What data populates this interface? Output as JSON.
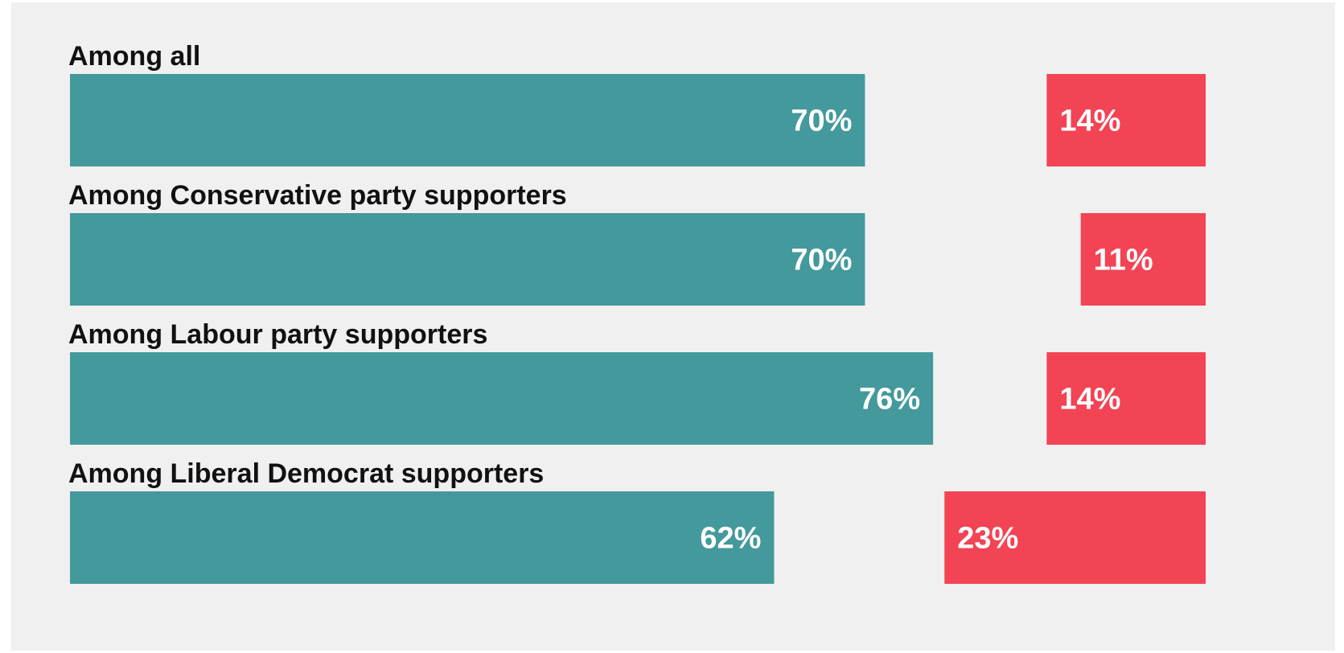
{
  "colors": {
    "background": "#f0f0f0",
    "positive": "#43999b",
    "negative": "#f24454",
    "label_text": "#111111",
    "value_text": "#ffffff"
  },
  "chart_data": {
    "type": "bar",
    "orientation": "horizontal",
    "categories": [
      "Among all",
      "Among Conservative party supporters",
      "Among Labour party supporters",
      "Among Liberal Democrat supporters"
    ],
    "series": [
      {
        "values": [
          70,
          70,
          76,
          62
        ],
        "color": "#43999b",
        "anchor": "left"
      },
      {
        "values": [
          14,
          11,
          14,
          23
        ],
        "color": "#f24454",
        "anchor": "right"
      }
    ],
    "value_labels": [
      [
        "70%",
        "14%"
      ],
      [
        "70%",
        "11%"
      ],
      [
        "76%",
        "14%"
      ],
      [
        "62%",
        "23%"
      ]
    ],
    "xlim": [
      0,
      100
    ],
    "grid": false,
    "legend": "none",
    "title": "",
    "xlabel": "",
    "ylabel": ""
  }
}
